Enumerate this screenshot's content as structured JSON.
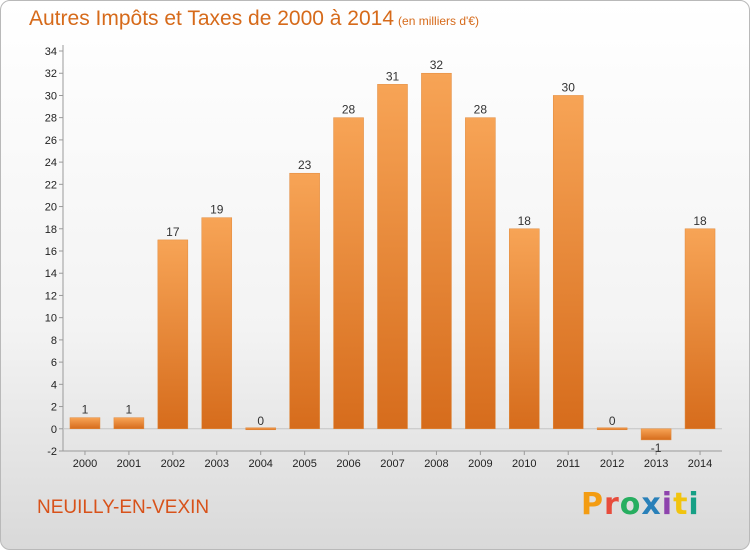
{
  "title": "Autres Impôts et Taxes de 2000 à 2014",
  "title_unit": "(en milliers d'€)",
  "location": "NEUILLY-EN-VEXIN",
  "brand": "Proxiti",
  "colors": {
    "title": "#d66a1a",
    "bar_light": "#f7a456",
    "bar_dark": "#d66c1c",
    "location": "#d8521a",
    "brand": [
      "#f39c12",
      "#e74c3c",
      "#27ae60",
      "#2980b9",
      "#8e44ad",
      "#f1c40f",
      "#16a085"
    ]
  },
  "chart_data": {
    "type": "bar",
    "title": "Autres Impôts et Taxes de 2000 à 2014",
    "subtitle": "(en milliers d'€)",
    "xlabel": "",
    "ylabel": "",
    "categories": [
      "2000",
      "2001",
      "2002",
      "2003",
      "2004",
      "2005",
      "2006",
      "2007",
      "2008",
      "2009",
      "2010",
      "2011",
      "2012",
      "2013",
      "2014"
    ],
    "values": [
      1,
      1,
      17,
      19,
      0,
      23,
      28,
      31,
      32,
      28,
      18,
      30,
      0,
      -1,
      18
    ],
    "ylim": [
      -2,
      34
    ],
    "yticks": [
      -2,
      0,
      2,
      4,
      6,
      8,
      10,
      12,
      14,
      16,
      18,
      20,
      22,
      24,
      26,
      28,
      30,
      32,
      34
    ],
    "grid": false,
    "legend": "none"
  }
}
